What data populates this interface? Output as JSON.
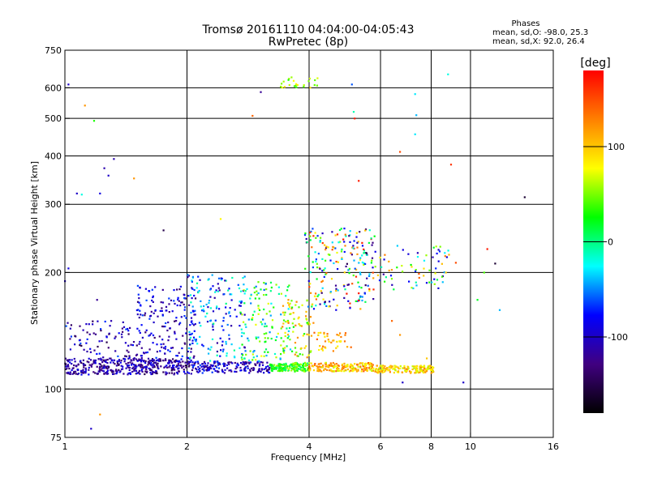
{
  "chart_data": {
    "type": "scatter",
    "title": "Tromsø 20161110 04:04:00-04:05:43",
    "subtitle": "RwPretec (8p)",
    "xlabel": "Frequency [MHz]",
    "ylabel": "Stationary phase Virtual Height [km]",
    "x_scale": "log",
    "y_scale": "log",
    "xlim": [
      1,
      16
    ],
    "ylim": [
      75,
      750
    ],
    "x_ticks": [
      1,
      2,
      4,
      6,
      8,
      10,
      16
    ],
    "x_tick_labels": [
      "1",
      "2",
      "4",
      "6",
      "8",
      "10",
      "16"
    ],
    "x_grid": [
      2,
      4,
      6,
      8,
      10
    ],
    "y_ticks": [
      75,
      100,
      200,
      300,
      400,
      500,
      600,
      750
    ],
    "y_tick_labels": [
      "75",
      "100",
      "200",
      "300",
      "400",
      "500",
      "600",
      "750"
    ],
    "y_grid": [
      100,
      200,
      300,
      400,
      500,
      600
    ],
    "grid": true,
    "stats": {
      "heading": "Phases",
      "line1": "mean, sd,O: -98.0, 25.3",
      "line2": "mean, sd,X:  92.0, 26.4"
    },
    "colorbar": {
      "label": "[deg]",
      "range": [
        -180,
        180
      ],
      "ticks": [
        100,
        0,
        -100
      ],
      "tick_labels": [
        "100",
        "0",
        "-100"
      ],
      "colors": [
        "#ff0000",
        "#ff8000",
        "#ffff00",
        "#00ff00",
        "#00ffff",
        "#0000ff",
        "#400080",
        "#000000"
      ]
    },
    "seed": 20161110,
    "clusters": [
      {
        "f": [
          1.0,
          2.05
        ],
        "h": [
          109,
          120
        ],
        "p": [
          -150,
          -80
        ],
        "n": 400
      },
      {
        "f": [
          2.05,
          3.2
        ],
        "h": [
          110,
          118
        ],
        "p": [
          -140,
          -60
        ],
        "n": 180
      },
      {
        "f": [
          3.2,
          4.0
        ],
        "h": [
          111,
          117
        ],
        "p": [
          0,
          60
        ],
        "n": 160
      },
      {
        "f": [
          4.0,
          5.8
        ],
        "h": [
          111,
          117
        ],
        "p": [
          60,
          150
        ],
        "n": 180
      },
      {
        "f": [
          5.8,
          8.1
        ],
        "h": [
          110,
          115
        ],
        "p": [
          60,
          130
        ],
        "n": 160
      },
      {
        "f": [
          1.0,
          1.55
        ],
        "h": [
          118,
          150
        ],
        "p": [
          -150,
          -60
        ],
        "n": 90
      },
      {
        "f": [
          1.5,
          2.1
        ],
        "h": [
          118,
          185
        ],
        "p": [
          -140,
          -60
        ],
        "n": 170
      },
      {
        "f": [
          2.0,
          2.8
        ],
        "h": [
          118,
          200
        ],
        "p": [
          -120,
          0
        ],
        "n": 170
      },
      {
        "f": [
          2.7,
          3.6
        ],
        "h": [
          118,
          190
        ],
        "p": [
          -60,
          80
        ],
        "n": 130
      },
      {
        "f": [
          3.4,
          4.1
        ],
        "h": [
          120,
          170
        ],
        "p": [
          20,
          130
        ],
        "n": 80
      },
      {
        "f": [
          3.9,
          5.8
        ],
        "h": [
          160,
          260
        ],
        "p": [
          -150,
          180
        ],
        "n": 220
      },
      {
        "f": [
          4.1,
          5.1
        ],
        "h": [
          125,
          140
        ],
        "p": [
          80,
          140
        ],
        "n": 40
      },
      {
        "f": [
          5.8,
          8.9
        ],
        "h": [
          180,
          235
        ],
        "p": [
          -120,
          150
        ],
        "n": 70
      },
      {
        "f": [
          3.4,
          4.2
        ],
        "h": [
          600,
          640
        ],
        "p": [
          30,
          90
        ],
        "n": 24
      }
    ],
    "extra_points": [
      {
        "x": 1.02,
        "y": 612,
        "p": -100
      },
      {
        "x": 1.12,
        "y": 540,
        "p": 120
      },
      {
        "x": 1.18,
        "y": 493,
        "p": 30
      },
      {
        "x": 1.25,
        "y": 372,
        "p": -110
      },
      {
        "x": 1.32,
        "y": 393,
        "p": -110
      },
      {
        "x": 1.28,
        "y": 356,
        "p": -100
      },
      {
        "x": 1.1,
        "y": 318,
        "p": -20
      },
      {
        "x": 1.07,
        "y": 320,
        "p": -100
      },
      {
        "x": 1.22,
        "y": 320,
        "p": -90
      },
      {
        "x": 1.48,
        "y": 350,
        "p": 120
      },
      {
        "x": 1.75,
        "y": 257,
        "p": -150
      },
      {
        "x": 2.42,
        "y": 275,
        "p": 80
      },
      {
        "x": 2.9,
        "y": 508,
        "p": 140
      },
      {
        "x": 3.04,
        "y": 585,
        "p": -120
      },
      {
        "x": 5.1,
        "y": 612,
        "p": -60
      },
      {
        "x": 5.15,
        "y": 520,
        "p": -10
      },
      {
        "x": 5.18,
        "y": 500,
        "p": 170
      },
      {
        "x": 5.3,
        "y": 345,
        "p": 170
      },
      {
        "x": 6.7,
        "y": 410,
        "p": 150
      },
      {
        "x": 7.3,
        "y": 578,
        "p": -30
      },
      {
        "x": 7.35,
        "y": 510,
        "p": -40
      },
      {
        "x": 7.3,
        "y": 455,
        "p": -30
      },
      {
        "x": 8.8,
        "y": 650,
        "p": -20
      },
      {
        "x": 8.95,
        "y": 380,
        "p": 160
      },
      {
        "x": 13.6,
        "y": 313,
        "p": -160
      },
      {
        "x": 11.0,
        "y": 230,
        "p": 170
      },
      {
        "x": 11.5,
        "y": 211,
        "p": -160
      },
      {
        "x": 10.8,
        "y": 200,
        "p": 40
      },
      {
        "x": 10.4,
        "y": 170,
        "p": 20
      },
      {
        "x": 11.8,
        "y": 160,
        "p": -40
      },
      {
        "x": 9.2,
        "y": 212,
        "p": 150
      },
      {
        "x": 9.6,
        "y": 104,
        "p": -100
      },
      {
        "x": 6.8,
        "y": 104,
        "p": -100
      },
      {
        "x": 1.22,
        "y": 86,
        "p": 120
      },
      {
        "x": 1.16,
        "y": 79,
        "p": -100
      },
      {
        "x": 1.0,
        "y": 190,
        "p": -100
      },
      {
        "x": 1.02,
        "y": 205,
        "p": -90
      },
      {
        "x": 1.2,
        "y": 170,
        "p": -120
      },
      {
        "x": 1.3,
        "y": 150,
        "p": -110
      },
      {
        "x": 6.4,
        "y": 150,
        "p": 140
      },
      {
        "x": 6.7,
        "y": 138,
        "p": 120
      },
      {
        "x": 7.8,
        "y": 120,
        "p": 100
      }
    ]
  }
}
